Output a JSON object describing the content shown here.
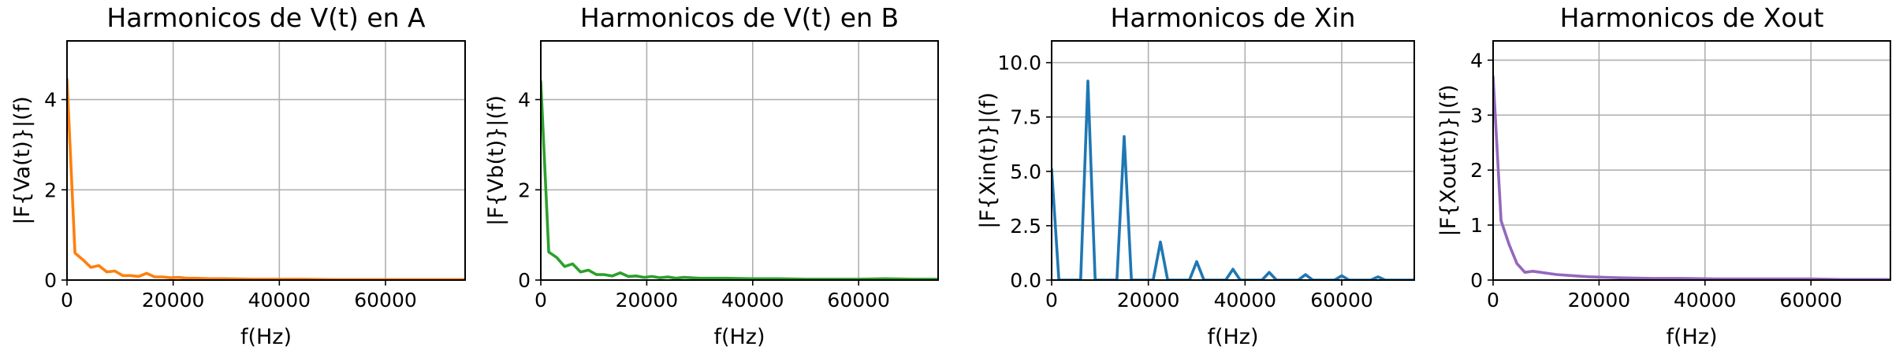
{
  "chart_data": [
    {
      "type": "line",
      "title": "Harmonicos de V(t) en A",
      "xlabel": "f(Hz)",
      "ylabel": "|F{Va(t)}|(f)",
      "xlim": [
        0,
        75000
      ],
      "ylim": [
        0,
        5.3
      ],
      "xticks": [
        0,
        20000,
        40000,
        60000
      ],
      "yticks": [
        0,
        2,
        4
      ],
      "grid": true,
      "color": "#ff7f0e",
      "x": [
        0,
        1500,
        3000,
        4500,
        6000,
        7500,
        9000,
        10500,
        12000,
        13500,
        15000,
        16500,
        18000,
        19500,
        21000,
        22500,
        24000,
        27000,
        30000,
        35000,
        40000,
        45000,
        50000,
        55000,
        60000,
        65000,
        70000,
        75000
      ],
      "y": [
        4.45,
        0.6,
        0.45,
        0.28,
        0.32,
        0.18,
        0.2,
        0.1,
        0.1,
        0.08,
        0.15,
        0.07,
        0.07,
        0.05,
        0.06,
        0.04,
        0.04,
        0.03,
        0.03,
        0.02,
        0.02,
        0.02,
        0.01,
        0.01,
        0.01,
        0.01,
        0.01,
        0.01
      ]
    },
    {
      "type": "line",
      "title": "Harmonicos de V(t) en B",
      "xlabel": "f(Hz)",
      "ylabel": "|F{Vb(t)}|(f)",
      "xlim": [
        0,
        75000
      ],
      "ylim": [
        0,
        5.3
      ],
      "xticks": [
        0,
        20000,
        40000,
        60000
      ],
      "yticks": [
        0,
        2,
        4
      ],
      "grid": true,
      "color": "#2ca02c",
      "x": [
        0,
        1500,
        3000,
        4500,
        6000,
        7500,
        9000,
        10500,
        12000,
        13500,
        15000,
        16500,
        18000,
        19500,
        21000,
        22500,
        24000,
        25500,
        27000,
        30000,
        35000,
        40000,
        45000,
        50000,
        55000,
        60000,
        65000,
        70000,
        75000
      ],
      "y": [
        4.4,
        0.62,
        0.5,
        0.3,
        0.36,
        0.18,
        0.22,
        0.12,
        0.12,
        0.09,
        0.16,
        0.08,
        0.09,
        0.06,
        0.08,
        0.05,
        0.07,
        0.04,
        0.06,
        0.04,
        0.04,
        0.03,
        0.03,
        0.02,
        0.02,
        0.02,
        0.03,
        0.02,
        0.02
      ]
    },
    {
      "type": "line",
      "title": "Harmonicos de Xin",
      "xlabel": "f(Hz)",
      "ylabel": "|F{Xin(t)}|(f)",
      "xlim": [
        0,
        75000
      ],
      "ylim": [
        0,
        11
      ],
      "xticks": [
        0,
        20000,
        40000,
        60000
      ],
      "yticks": [
        0.0,
        2.5,
        5.0,
        7.5,
        10.0
      ],
      "ytick_labels": [
        "0.0",
        "2.5",
        "5.0",
        "7.5",
        "10.0"
      ],
      "grid": true,
      "color": "#1f77b4",
      "x": [
        0,
        1500,
        3000,
        4500,
        6000,
        7500,
        9000,
        10500,
        12000,
        13500,
        15000,
        16500,
        18000,
        19500,
        21000,
        22500,
        24000,
        25500,
        27000,
        28500,
        30000,
        31500,
        33000,
        34500,
        36000,
        37500,
        39000,
        40500,
        42000,
        43500,
        45000,
        46500,
        48000,
        49500,
        51000,
        52500,
        54000,
        55500,
        57000,
        58500,
        60000,
        61500,
        63000,
        64500,
        66000,
        67500,
        69000,
        70500,
        72000,
        73500,
        75000
      ],
      "y": [
        5.1,
        0,
        0,
        0,
        0,
        9.15,
        0,
        0,
        0,
        0,
        6.6,
        0,
        0,
        0,
        0,
        1.75,
        0,
        0,
        0,
        0,
        0.85,
        0,
        0,
        0,
        0,
        0.5,
        0,
        0,
        0,
        0,
        0.35,
        0,
        0,
        0,
        0,
        0.25,
        0,
        0,
        0,
        0,
        0.2,
        0,
        0,
        0,
        0,
        0.15,
        0,
        0,
        0,
        0,
        0
      ]
    },
    {
      "type": "line",
      "title": "Harmonicos de Xout",
      "xlabel": "f(Hz)",
      "ylabel": "|F{Xout(t)}|(f)",
      "xlim": [
        0,
        75000
      ],
      "ylim": [
        0,
        4.35
      ],
      "xticks": [
        0,
        20000,
        40000,
        60000
      ],
      "yticks": [
        0,
        1,
        2,
        3,
        4
      ],
      "grid": true,
      "color": "#9467bd",
      "x": [
        0,
        1500,
        3000,
        4500,
        6000,
        7500,
        9000,
        10500,
        12000,
        15000,
        18000,
        21000,
        24000,
        30000,
        36000,
        42000,
        48000,
        54000,
        60000,
        66000,
        72000,
        75000
      ],
      "y": [
        3.7,
        1.08,
        0.65,
        0.3,
        0.14,
        0.16,
        0.14,
        0.12,
        0.1,
        0.08,
        0.06,
        0.05,
        0.04,
        0.03,
        0.03,
        0.02,
        0.02,
        0.02,
        0.02,
        0.01,
        0.01,
        0.01
      ]
    }
  ]
}
